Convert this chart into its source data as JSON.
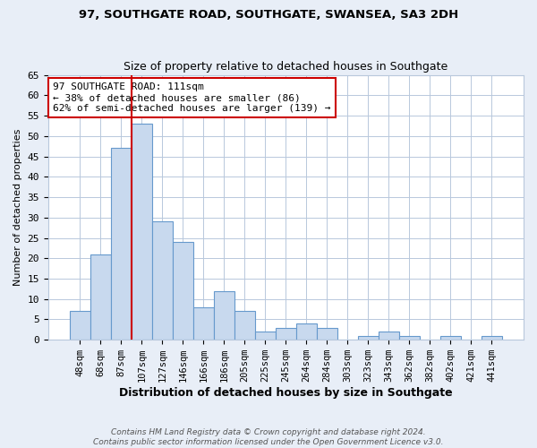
{
  "title1": "97, SOUTHGATE ROAD, SOUTHGATE, SWANSEA, SA3 2DH",
  "title2": "Size of property relative to detached houses in Southgate",
  "xlabel": "Distribution of detached houses by size in Southgate",
  "ylabel": "Number of detached properties",
  "bar_labels": [
    "48sqm",
    "68sqm",
    "87sqm",
    "107sqm",
    "127sqm",
    "146sqm",
    "166sqm",
    "186sqm",
    "205sqm",
    "225sqm",
    "245sqm",
    "264sqm",
    "284sqm",
    "303sqm",
    "323sqm",
    "343sqm",
    "362sqm",
    "382sqm",
    "402sqm",
    "421sqm",
    "441sqm"
  ],
  "bar_values": [
    7,
    21,
    47,
    53,
    29,
    24,
    8,
    12,
    7,
    2,
    3,
    4,
    3,
    0,
    1,
    2,
    1,
    0,
    1,
    0,
    1
  ],
  "bar_color": "#c8d9ee",
  "bar_edge_color": "#6699cc",
  "vline_idx": 3,
  "vline_color": "#cc0000",
  "annotation_line1": "97 SOUTHGATE ROAD: 111sqm",
  "annotation_line2": "← 38% of detached houses are smaller (86)",
  "annotation_line3": "62% of semi-detached houses are larger (139) →",
  "ylim": [
    0,
    65
  ],
  "yticks": [
    0,
    5,
    10,
    15,
    20,
    25,
    30,
    35,
    40,
    45,
    50,
    55,
    60,
    65
  ],
  "footer": "Contains HM Land Registry data © Crown copyright and database right 2024.\nContains public sector information licensed under the Open Government Licence v3.0.",
  "bg_color": "#e8eef7",
  "plot_bg_color": "#ffffff"
}
